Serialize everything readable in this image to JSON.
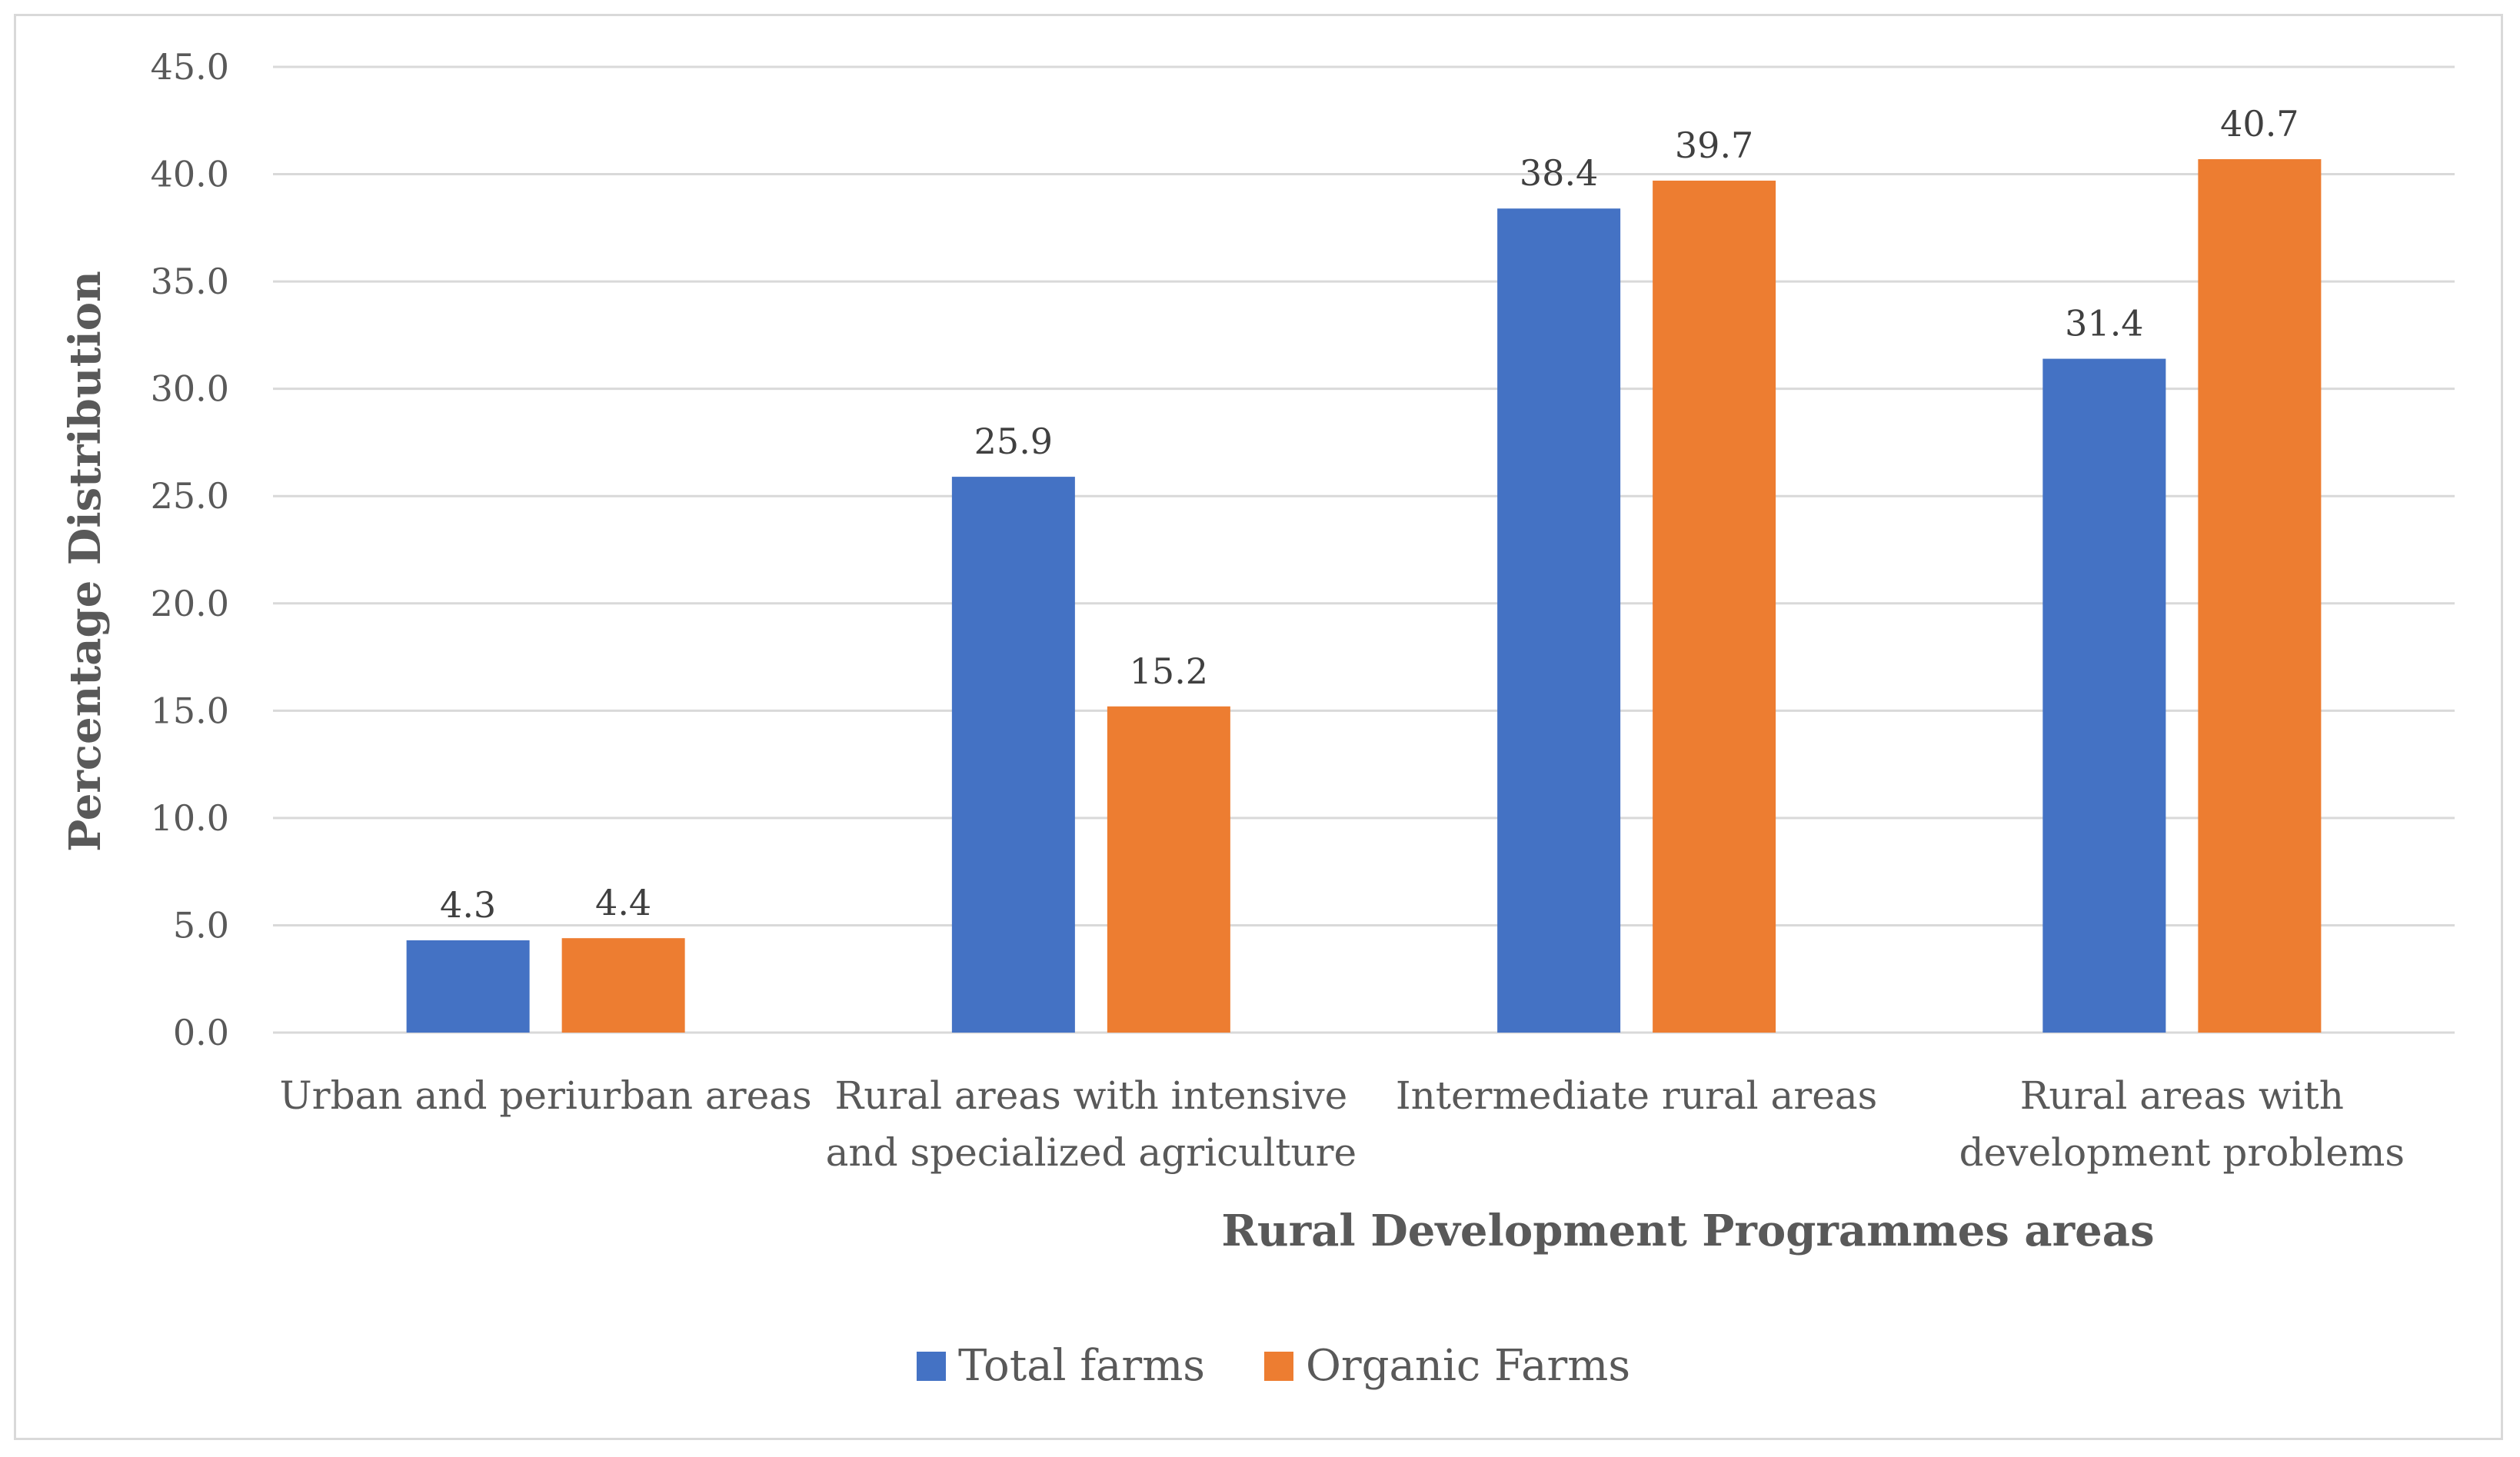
{
  "chart_data": {
    "type": "bar",
    "title": "",
    "xlabel": "Rural Development Programmes areas",
    "ylabel": "Percentage Distribution",
    "ylim": [
      0,
      45
    ],
    "yticks": [
      "0.0",
      "5.0",
      "10.0",
      "15.0",
      "20.0",
      "25.0",
      "30.0",
      "35.0",
      "40.0",
      "45.0"
    ],
    "grid": true,
    "legend_position": "bottom",
    "categories": [
      [
        "Urban and periurban areas"
      ],
      [
        "Rural areas with intensive",
        "and specialized agriculture"
      ],
      [
        "Intermediate rural areas"
      ],
      [
        "Rural areas with",
        "development problems"
      ]
    ],
    "series": [
      {
        "name": "Total farms",
        "color": "#4472C4",
        "values": [
          4.3,
          25.9,
          38.4,
          31.4
        ],
        "labels": [
          "4.3",
          "25.9",
          "38.4",
          "31.4"
        ]
      },
      {
        "name": "Organic Farms",
        "color": "#ED7D31",
        "values": [
          4.4,
          15.2,
          39.7,
          40.7
        ],
        "labels": [
          "4.4",
          "15.2",
          "39.7",
          "40.7"
        ]
      }
    ]
  }
}
